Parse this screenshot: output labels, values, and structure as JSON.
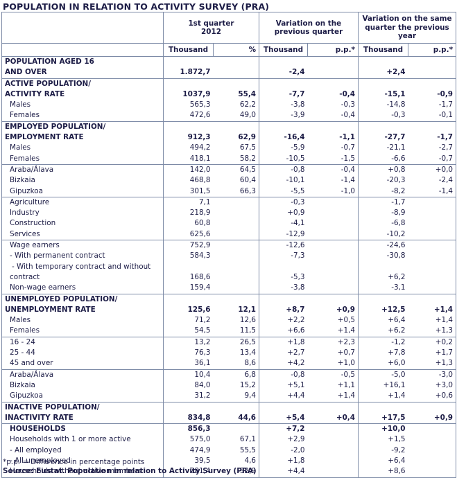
{
  "title": "POPULATION IN RELATION TO ACTIVITY SURVEY (PRA)",
  "headers": {
    "group1": "1st quarter 2012",
    "group2": "Variation on the previous quarter",
    "group3": "Variation on the same quarter the previous year",
    "thousand": "Thousand",
    "pct": "%",
    "pp": "p.p.*"
  },
  "rows": [
    {
      "kind": "section",
      "label": [
        "POPULATION AGED 16",
        "AND OVER"
      ],
      "v": [
        "1.872,7",
        "",
        "-2,4",
        "",
        "+2,4",
        ""
      ]
    },
    {
      "kind": "section",
      "label": [
        "ACTIVE POPULATION/",
        "ACTIVITY RATE"
      ],
      "v": [
        "1037,9",
        "55,4",
        "-7,7",
        "-0,4",
        "-15,1",
        "-0,9"
      ]
    },
    {
      "kind": "item",
      "label": "Males",
      "v": [
        "565,3",
        "62,2",
        "-3,8",
        "-0,3",
        "-14,8",
        "-1,7"
      ]
    },
    {
      "kind": "item",
      "label": "Females",
      "v": [
        "472,6",
        "49,0",
        "-3,9",
        "-0,4",
        "-0,3",
        "-0,1"
      ]
    },
    {
      "kind": "section",
      "label": [
        "EMPLOYED POPULATION/",
        "EMPLOYMENT RATE"
      ],
      "v": [
        "912,3",
        "62,9",
        "-16,4",
        "-1,1",
        "-27,7",
        "-1,7"
      ]
    },
    {
      "kind": "item",
      "label": "Males",
      "v": [
        "494,2",
        "67,5",
        "-5,9",
        "-0,7",
        "-21,1",
        "-2,7"
      ]
    },
    {
      "kind": "item",
      "label": "Females",
      "v": [
        "418,1",
        "58,2",
        "-10,5",
        "-1,5",
        "-6,6",
        "-0,7"
      ]
    },
    {
      "kind": "item",
      "label": "Araba/Álava",
      "top": true,
      "v": [
        "142,0",
        "64,5",
        "-0,8",
        "-0,4",
        "+0,8",
        "+0,0"
      ]
    },
    {
      "kind": "item",
      "label": "Bizkaia",
      "v": [
        "468,8",
        "60,4",
        "-10,1",
        "-1,4",
        "-20,3",
        "-2,4"
      ]
    },
    {
      "kind": "item",
      "label": "Gipuzkoa",
      "v": [
        "301,5",
        "66,3",
        "-5,5",
        "-1,0",
        "-8,2",
        "-1,4"
      ]
    },
    {
      "kind": "item",
      "label": "Agriculture",
      "top": true,
      "v": [
        "7,1",
        "",
        "-0,3",
        "",
        "-1,7",
        ""
      ]
    },
    {
      "kind": "item",
      "label": "Industry",
      "v": [
        "218,9",
        "",
        "+0,9",
        "",
        "-8,9",
        ""
      ]
    },
    {
      "kind": "item",
      "label": "Construction",
      "v": [
        "60,8",
        "",
        "-4,1",
        "",
        "-6,8",
        ""
      ]
    },
    {
      "kind": "item",
      "label": "Services",
      "v": [
        "625,6",
        "",
        "-12,9",
        "",
        "-10,2",
        ""
      ]
    },
    {
      "kind": "item",
      "label": "Wage earners",
      "top": true,
      "v": [
        "752,9",
        "",
        "-12,6",
        "",
        "-24,6",
        ""
      ]
    },
    {
      "kind": "item",
      "label": "- With permanent contract",
      "v": [
        "584,3",
        "",
        "-7,3",
        "",
        "-30,8",
        ""
      ]
    },
    {
      "kind": "item2",
      "label": [
        "- With temporary contract and without",
        "contract"
      ],
      "v": [
        "168,6",
        "",
        "-5,3",
        "",
        "+6,2",
        ""
      ]
    },
    {
      "kind": "item",
      "label": "Non-wage earners",
      "v": [
        "159,4",
        "",
        "-3,8",
        "",
        "-3,1",
        ""
      ]
    },
    {
      "kind": "section",
      "label": [
        "UNEMPLOYED POPULATION/",
        "UNEMPLOYMENT RATE"
      ],
      "v": [
        "125,6",
        "12,1",
        "+8,7",
        "+0,9",
        "+12,5",
        "+1,4"
      ]
    },
    {
      "kind": "item",
      "label": "Males",
      "v": [
        "71,2",
        "12,6",
        "+2,2",
        "+0,5",
        "+6,4",
        "+1,4"
      ]
    },
    {
      "kind": "item",
      "label": "Females",
      "v": [
        "54,5",
        "11,5",
        "+6,6",
        "+1,4",
        "+6,2",
        "+1,3"
      ]
    },
    {
      "kind": "item",
      "label": "16 - 24",
      "top": true,
      "v": [
        "13,2",
        "26,5",
        "+1,8",
        "+2,3",
        "-1,2",
        "+0,2"
      ]
    },
    {
      "kind": "item",
      "label": "25 - 44",
      "v": [
        "76,3",
        "13,4",
        "+2,7",
        "+0,7",
        "+7,8",
        "+1,7"
      ]
    },
    {
      "kind": "item",
      "label": "45 and over",
      "v": [
        "36,1",
        "8,6",
        "+4,2",
        "+1,0",
        "+6,0",
        "+1,3"
      ]
    },
    {
      "kind": "item",
      "label": "Araba/Álava",
      "top": true,
      "v": [
        "10,4",
        "6,8",
        "-0,8",
        "-0,5",
        "-5,0",
        "-3,0"
      ]
    },
    {
      "kind": "item",
      "label": "Bizkaia",
      "v": [
        "84,0",
        "15,2",
        "+5,1",
        "+1,1",
        "+16,1",
        "+3,0"
      ]
    },
    {
      "kind": "item",
      "label": "Gipuzkoa",
      "v": [
        "31,2",
        "9,4",
        "+4,4",
        "+1,4",
        "+1,4",
        "+0,6"
      ]
    },
    {
      "kind": "section",
      "label": [
        "INACTIVE POPULATION/",
        "INACTIVITY RATE"
      ],
      "v": [
        "834,8",
        "44,6",
        "+5,4",
        "+0,4",
        "+17,5",
        "+0,9"
      ]
    },
    {
      "kind": "hsec",
      "label": "HOUSEHOLDS",
      "v": [
        "856,3",
        "",
        "+7,2",
        "",
        "+10,0",
        ""
      ]
    },
    {
      "kind": "item",
      "label": "Households with 1 or more active",
      "v": [
        "575,0",
        "67,1",
        "+2,9",
        "",
        "+1,5",
        ""
      ]
    },
    {
      "kind": "item",
      "label": "- All employed",
      "v": [
        "474,9",
        "55,5",
        "-2,0",
        "",
        "-9,2",
        ""
      ]
    },
    {
      "kind": "item",
      "label": "- All unemployed",
      "v": [
        "39,5",
        "4,6",
        "+1,8",
        "",
        "+6,4",
        ""
      ]
    },
    {
      "kind": "item",
      "label": "Households without active members",
      "v": [
        "281,4",
        "32,9",
        "+4,4",
        "",
        "+8,6",
        ""
      ]
    }
  ],
  "footnote": "*p.p. = Difference in percentage points",
  "source": "Source: Eustat. Population in relation to Activity Survey (PRA)"
}
